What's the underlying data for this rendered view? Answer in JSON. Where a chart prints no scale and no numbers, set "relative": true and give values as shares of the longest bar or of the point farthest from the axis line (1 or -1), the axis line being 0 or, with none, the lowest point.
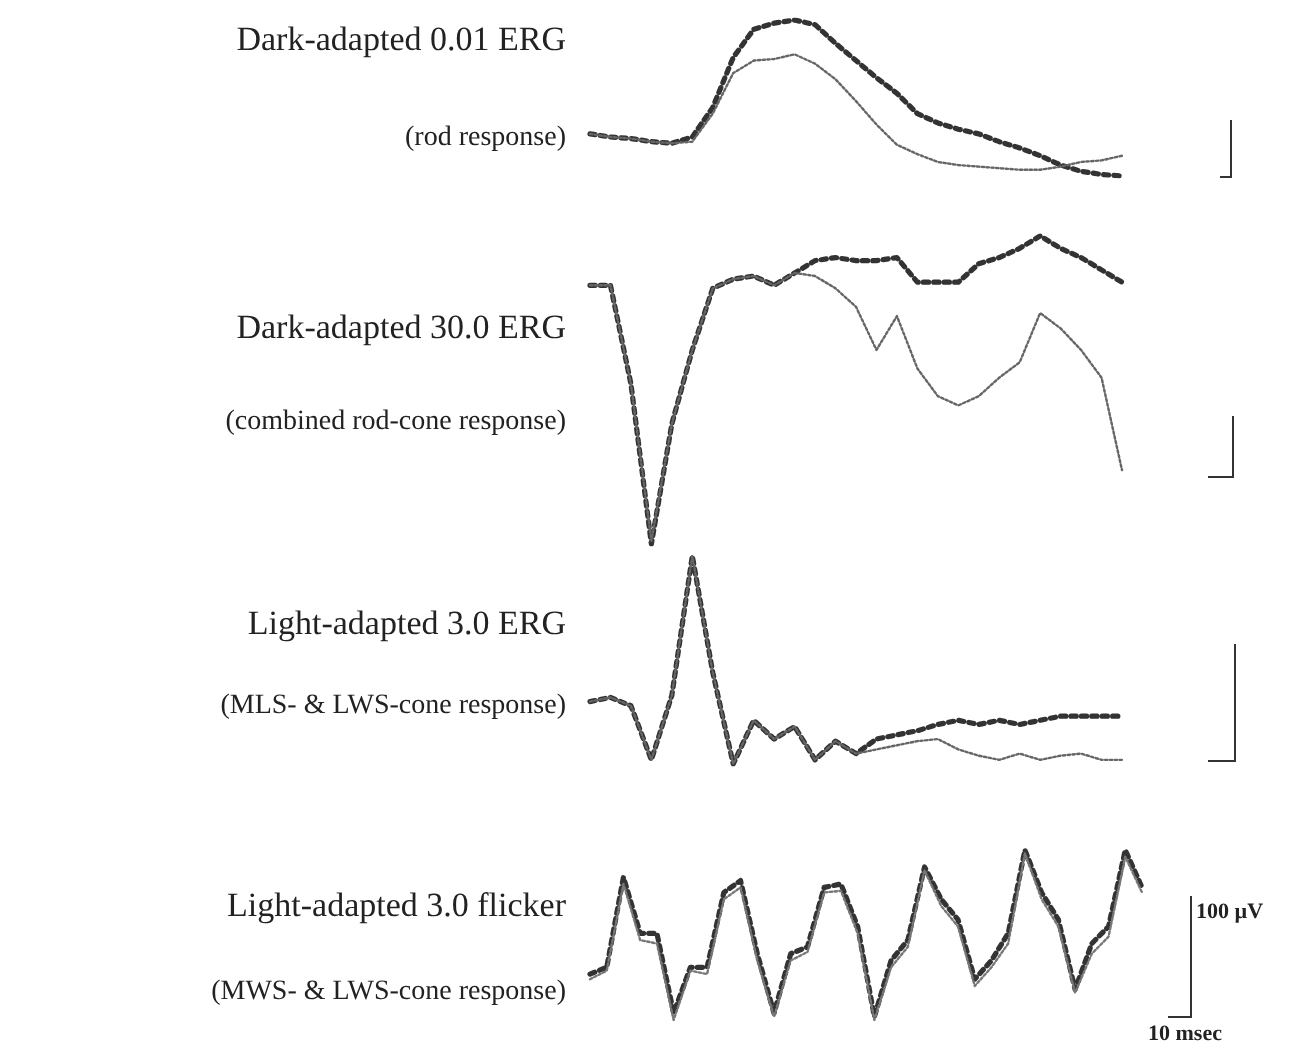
{
  "chart_data": [
    {
      "type": "line",
      "title": "Dark-adapted 0.01 ERG",
      "subtitle": "(rod response)",
      "relative": true,
      "marker": "none",
      "line_style": "dotted",
      "categories": [
        null,
        null,
        null,
        null,
        null,
        null,
        null,
        null,
        null,
        null,
        null,
        null,
        null,
        null,
        null,
        null,
        null,
        null,
        null,
        null,
        null,
        null,
        null,
        null,
        null,
        null,
        null
      ],
      "series": [
        {
          "color": "#333333",
          "values": [
            0.27,
            0.25,
            0.24,
            0.22,
            0.21,
            0.25,
            0.44,
            0.76,
            0.94,
            0.98,
            1,
            0.97,
            0.85,
            0.74,
            0.63,
            0.53,
            0.4,
            0.34,
            0.3,
            0.27,
            0.22,
            0.18,
            0.13,
            0.07,
            0.03,
            0.01,
            0
          ]
        },
        {
          "color": "#666666",
          "values": [
            0.27,
            0.25,
            0.24,
            0.22,
            0.21,
            0.22,
            0.4,
            0.66,
            0.74,
            0.75,
            0.78,
            0.72,
            0.62,
            0.48,
            0.33,
            0.2,
            0.14,
            0.09,
            0.07,
            0.06,
            0.05,
            0.04,
            0.04,
            0.06,
            0.09,
            0.1,
            0.13
          ]
        }
      ]
    },
    {
      "type": "line",
      "title": "Dark-adapted 30.0 ERG",
      "subtitle": "(combined rod-cone response)",
      "relative": true,
      "marker": "none",
      "line_style": "dotted",
      "categories": [
        null,
        null,
        null,
        null,
        null,
        null,
        null,
        null,
        null,
        null,
        null,
        null,
        null,
        null,
        null,
        null,
        null,
        null,
        null,
        null,
        null,
        null,
        null,
        null,
        null,
        null,
        null
      ],
      "series": [
        {
          "color": "#333333",
          "values": [
            0.84,
            0.84,
            0.52,
            0,
            0.39,
            0.63,
            0.83,
            0.86,
            0.87,
            0.84,
            0.88,
            0.92,
            0.93,
            0.92,
            0.92,
            0.93,
            0.85,
            0.85,
            0.85,
            0.91,
            0.93,
            0.96,
            1,
            0.96,
            0.93,
            0.89,
            0.85
          ]
        },
        {
          "color": "#666666",
          "values": [
            0.84,
            0.84,
            0.52,
            0.01,
            0.39,
            0.63,
            0.83,
            0.86,
            0.87,
            0.84,
            0.88,
            0.87,
            0.83,
            0.77,
            0.63,
            0.74,
            0.57,
            0.48,
            0.45,
            0.48,
            0.54,
            0.59,
            0.75,
            0.7,
            0.63,
            0.54,
            0.24
          ]
        }
      ]
    },
    {
      "type": "line",
      "title": "Light-adapted 3.0 ERG",
      "subtitle": "(MLS- & LWS-cone response)",
      "relative": true,
      "marker": "none",
      "line_style": "dotted",
      "categories": [
        null,
        null,
        null,
        null,
        null,
        null,
        null,
        null,
        null,
        null,
        null,
        null,
        null,
        null,
        null,
        null,
        null,
        null,
        null,
        null,
        null,
        null,
        null,
        null,
        null,
        null,
        null
      ],
      "series": [
        {
          "color": "#333333",
          "values": [
            0.3,
            0.32,
            0.28,
            0.02,
            0.33,
            1,
            0.44,
            0,
            0.21,
            0.12,
            0.18,
            0.02,
            0.11,
            0.05,
            0.12,
            0.14,
            0.16,
            0.19,
            0.21,
            0.19,
            0.21,
            0.19,
            0.21,
            0.23,
            0.23,
            0.23,
            0.23
          ]
        },
        {
          "color": "#666666",
          "values": [
            0.3,
            0.32,
            0.28,
            0.02,
            0.33,
            1,
            0.44,
            0,
            0.21,
            0.12,
            0.18,
            0.02,
            0.11,
            0.05,
            0.07,
            0.09,
            0.11,
            0.12,
            0.07,
            0.04,
            0.02,
            0.05,
            0.02,
            0.04,
            0.05,
            0.02,
            0.02
          ]
        }
      ]
    },
    {
      "type": "line",
      "title": "Light-adapted 3.0 flicker",
      "subtitle": "(MWS- & LWS-cone response)",
      "relative": true,
      "marker": "none",
      "line_style": "dotted",
      "annotations": [
        "100 µV",
        "10 msec"
      ],
      "categories": [
        null,
        null,
        null,
        null,
        null,
        null,
        null,
        null,
        null,
        null,
        null,
        null,
        null,
        null,
        null,
        null,
        null,
        null,
        null,
        null,
        null,
        null,
        null,
        null,
        null,
        null,
        null,
        null,
        null,
        null,
        null,
        null,
        null,
        null
      ],
      "series": [
        {
          "color": "#333333",
          "values": [
            0.27,
            0.31,
            0.84,
            0.51,
            0.51,
            0.04,
            0.31,
            0.31,
            0.75,
            0.82,
            0.39,
            0.04,
            0.39,
            0.43,
            0.78,
            0.8,
            0.55,
            0.02,
            0.35,
            0.47,
            0.9,
            0.71,
            0.59,
            0.24,
            0.35,
            0.51,
            1,
            0.75,
            0.59,
            0.18,
            0.45,
            0.55,
            1,
            0.78
          ]
        },
        {
          "color": "#777777",
          "values": [
            0.24,
            0.29,
            0.8,
            0.47,
            0.45,
            0,
            0.29,
            0.27,
            0.71,
            0.78,
            0.35,
            0.02,
            0.35,
            0.4,
            0.75,
            0.76,
            0.51,
            0,
            0.31,
            0.43,
            0.88,
            0.67,
            0.55,
            0.2,
            0.31,
            0.45,
            0.98,
            0.71,
            0.55,
            0.16,
            0.39,
            0.49,
            0.96,
            0.75
          ]
        }
      ]
    }
  ]
}
